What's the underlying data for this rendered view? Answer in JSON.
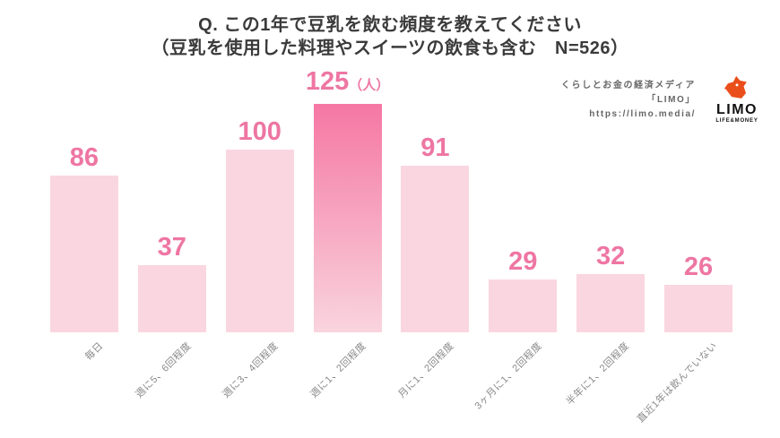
{
  "title": {
    "line1": "Q. この1年で豆乳を飲む頻度を教えてください",
    "line2": "（豆乳を使用した料理やスイーツの飲食も含む　N=526）"
  },
  "credit": {
    "line1": "くらしとお金の経済メディア",
    "line2": "「LIMO」",
    "line3": "https://limo.media/",
    "logo_text": "LIMO",
    "logo_subtext": "LIFE&MONEY",
    "logo_color": "#EA4E1B"
  },
  "chart_data": {
    "type": "bar",
    "title": "Q. この1年で豆乳を飲む頻度を教えてください（豆乳を使用した料理やスイーツの飲食も含む　N=526）",
    "categories": [
      "毎日",
      "週に5、6回程度",
      "週に3、4回程度",
      "週に1、2回程度",
      "月に1、2回程度",
      "3ヶ月に1、2回程度",
      "半年に1、2回程度",
      "直近1年は飲んでいない"
    ],
    "values": [
      86,
      37,
      100,
      125,
      91,
      29,
      32,
      26
    ],
    "unit_label": "（人）",
    "unit_on_index": 3,
    "highlight_index": 3,
    "xlabel": "",
    "ylabel": "",
    "ylim": [
      0,
      125
    ],
    "grid": false,
    "legend": false,
    "colors": {
      "bar": "#FAD6E0",
      "highlight_top": "#F577A3",
      "highlight_bottom": "#F9D4DE",
      "value_label": "#EE76A3",
      "category_label": "#8A8A8A",
      "title": "#3B3B3B"
    }
  }
}
